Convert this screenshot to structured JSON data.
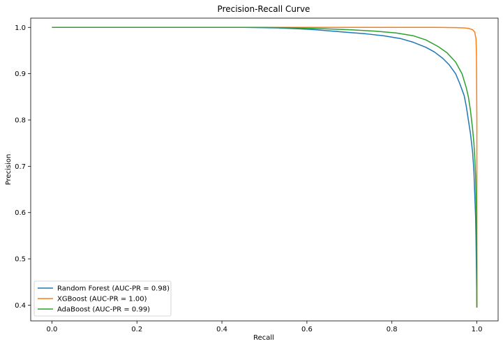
{
  "chart_data": {
    "type": "line",
    "title": "Precision-Recall Curve",
    "xlabel": "Recall",
    "ylabel": "Precision",
    "xlim": [
      -0.05,
      1.05
    ],
    "ylim": [
      0.366,
      1.02
    ],
    "xticks": [
      0.0,
      0.2,
      0.4,
      0.6,
      0.8,
      1.0
    ],
    "xtick_labels": [
      "0.0",
      "0.2",
      "0.4",
      "0.6",
      "0.8",
      "1.0"
    ],
    "yticks": [
      0.4,
      0.5,
      0.6,
      0.7,
      0.8,
      0.9,
      1.0
    ],
    "ytick_labels": [
      "0.4",
      "0.5",
      "0.6",
      "0.7",
      "0.8",
      "0.9",
      "1.0"
    ],
    "grid": false,
    "legend": "lower-left",
    "series": [
      {
        "name": "Random Forest (AUC-PR = 0.98)",
        "color": "#1f77b4",
        "x": [
          0.0,
          0.45,
          0.53,
          0.58,
          0.62,
          0.66,
          0.7,
          0.74,
          0.78,
          0.82,
          0.85,
          0.88,
          0.9,
          0.92,
          0.935,
          0.95,
          0.96,
          0.97,
          0.975,
          0.98,
          0.985,
          0.99,
          0.993,
          0.995,
          0.997,
          0.998,
          0.999,
          1.0
        ],
        "y": [
          1.0,
          1.0,
          0.999,
          0.997,
          0.995,
          0.992,
          0.989,
          0.986,
          0.982,
          0.976,
          0.968,
          0.957,
          0.947,
          0.933,
          0.919,
          0.9,
          0.878,
          0.853,
          0.83,
          0.8,
          0.77,
          0.73,
          0.69,
          0.64,
          0.59,
          0.54,
          0.47,
          0.395
        ]
      },
      {
        "name": "XGBoost (AUC-PR = 1.00)",
        "color": "#ff7f0e",
        "x": [
          0.0,
          0.6,
          0.9,
          0.95,
          0.97,
          0.98,
          0.99,
          0.995,
          0.998,
          0.999,
          1.0,
          1.0
        ],
        "y": [
          1.0,
          1.0,
          1.0,
          0.9995,
          0.999,
          0.998,
          0.995,
          0.99,
          0.975,
          0.94,
          0.8,
          0.395
        ]
      },
      {
        "name": "AdaBoost (AUC-PR = 0.99)",
        "color": "#2ca02c",
        "x": [
          0.0,
          0.5,
          0.58,
          0.64,
          0.7,
          0.76,
          0.81,
          0.85,
          0.88,
          0.91,
          0.93,
          0.95,
          0.965,
          0.975,
          0.98,
          0.985,
          0.99,
          0.993,
          0.995,
          0.997,
          0.999,
          1.0,
          1.0
        ],
        "y": [
          1.0,
          1.0,
          0.999,
          0.997,
          0.995,
          0.992,
          0.988,
          0.982,
          0.973,
          0.958,
          0.945,
          0.925,
          0.9,
          0.87,
          0.85,
          0.82,
          0.78,
          0.75,
          0.72,
          0.68,
          0.6,
          0.48,
          0.395
        ]
      }
    ]
  }
}
